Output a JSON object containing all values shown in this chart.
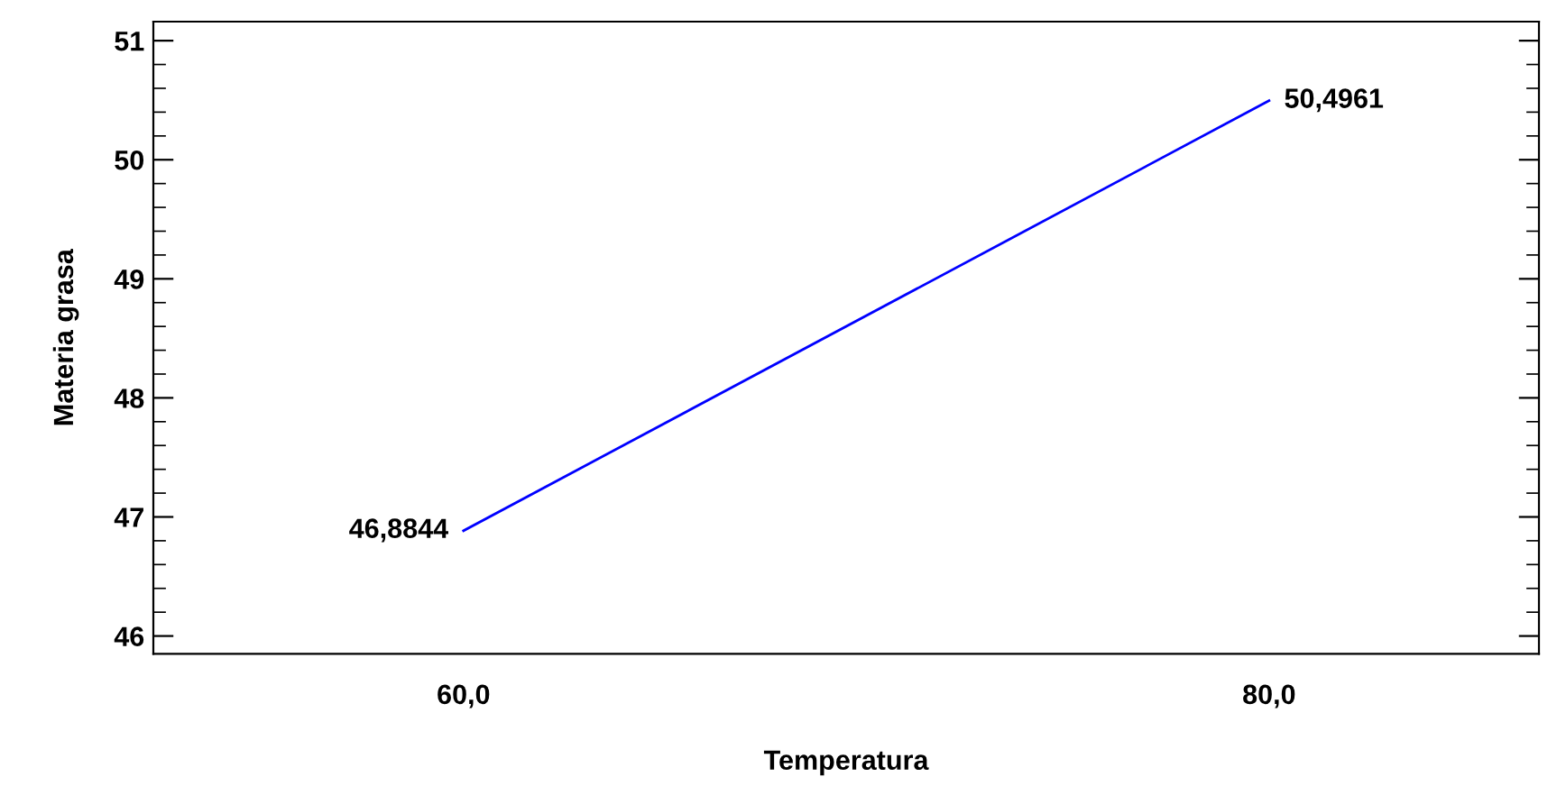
{
  "chart_data": {
    "type": "line",
    "xlabel": "Temperatura",
    "ylabel": "Materia grasa",
    "x": [
      60,
      80
    ],
    "series": [
      {
        "color": "#0000ff",
        "values": [
          46.8844,
          50.4961
        ],
        "value_labels": [
          "46,8844",
          "50,4961"
        ]
      }
    ],
    "xlim": [
      52.3,
      86.7
    ],
    "ylim": [
      45.85,
      51.16
    ],
    "xticks": [
      {
        "value": 60,
        "label": "60,0"
      },
      {
        "value": 80,
        "label": "80,0"
      }
    ],
    "yticks": [
      46,
      47,
      48,
      49,
      50,
      51
    ],
    "grid": false,
    "legend": false,
    "marker": "none",
    "line_style": "solid"
  }
}
